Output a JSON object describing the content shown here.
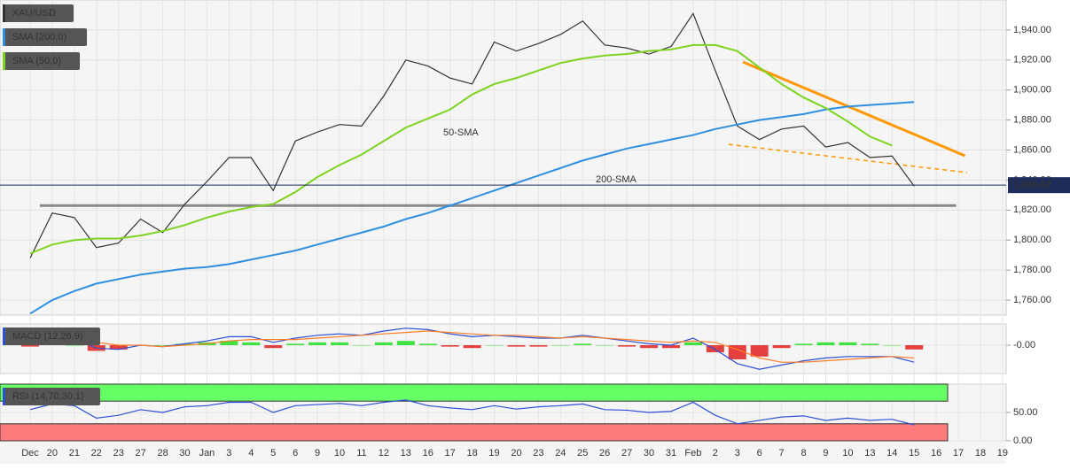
{
  "chart_data": [
    {
      "type": "line",
      "categories": [
        "Dec",
        "20",
        "21",
        "22",
        "23",
        "27",
        "28",
        "30",
        "Jan",
        "3",
        "4",
        "5",
        "6",
        "9",
        "10",
        "11",
        "12",
        "13",
        "16",
        "17",
        "18",
        "19",
        "20",
        "23",
        "24",
        "25",
        "26",
        "27",
        "30",
        "31",
        "Feb",
        "2",
        "3",
        "6",
        "7",
        "8",
        "9",
        "10",
        "13",
        "14",
        "15",
        "16",
        "17",
        "18",
        "19"
      ],
      "series": [
        {
          "name": "XAU/USD",
          "color": "#333333",
          "values": [
            1788,
            1818,
            1815,
            1795,
            1798,
            1814,
            1805,
            1824,
            1839,
            1855,
            1855,
            1833,
            1866,
            1872,
            1877,
            1876,
            1896,
            1920,
            1916,
            1908,
            1904,
            1932,
            1926,
            1931,
            1937,
            1946,
            1930,
            1928,
            1924,
            1929,
            1951,
            1913,
            1876,
            1867,
            1874,
            1876,
            1862,
            1865,
            1855,
            1856,
            1836,
            null,
            null,
            null,
            null
          ]
        },
        {
          "name": "SMA (200,0)",
          "color": "#2e8fe0",
          "values": [
            1751,
            1760,
            1766,
            1771,
            1774,
            1777,
            1779,
            1781,
            1782,
            1784,
            1787,
            1790,
            1793,
            1797,
            1801,
            1805,
            1809,
            1814,
            1818,
            1823,
            1828,
            1833,
            1838,
            1843,
            1848,
            1853,
            1857,
            1861,
            1864,
            1867,
            1870,
            1874,
            1877,
            1880,
            1882,
            1884,
            1887,
            1889,
            1890,
            1891,
            1892,
            null,
            null,
            null,
            null
          ]
        },
        {
          "name": "SMA (50,0)",
          "color": "#7ed321",
          "values": [
            1791,
            1797,
            1800,
            1801,
            1801,
            1803,
            1806,
            1810,
            1815,
            1819,
            1822,
            1824,
            1832,
            1842,
            1850,
            1857,
            1866,
            1875,
            1881,
            1887,
            1897,
            1904,
            1908,
            1913,
            1918,
            1921,
            1923,
            1924,
            1926,
            1927,
            1930,
            1930,
            1926,
            1915,
            1904,
            1895,
            1888,
            1879,
            1869,
            1863,
            null,
            null,
            null,
            null,
            null
          ]
        }
      ],
      "ylim": [
        1750,
        1960
      ],
      "yticks": [
        {
          "value": 1760,
          "label": "1,760.00"
        },
        {
          "value": 1780,
          "label": "1,780.00"
        },
        {
          "value": 1800,
          "label": "1,800.00"
        },
        {
          "value": 1820,
          "label": "1,820.00"
        },
        {
          "value": 1840,
          "label": "1,840.00"
        },
        {
          "value": 1860,
          "label": "1,860.00"
        },
        {
          "value": 1880,
          "label": "1,880.00"
        },
        {
          "value": 1900,
          "label": "1,900.00"
        },
        {
          "value": 1920,
          "label": "1,920.00"
        },
        {
          "value": 1940,
          "label": "1,940.00"
        }
      ],
      "grid": true,
      "last_price": {
        "value": 1836.62,
        "label": "1,836.62"
      },
      "lines": [
        {
          "from": [
            0.44,
            1823
          ],
          "to": [
            41.9,
            1823
          ],
          "color": "#888888",
          "dashed": false
        },
        {
          "from": [
            32.25,
            1918.7
          ],
          "to": [
            42.3,
            1856.2
          ],
          "color": "#ff9800",
          "dashed": false
        },
        {
          "from": [
            31.6,
            1863.8
          ],
          "to": [
            42.4,
            1845
          ],
          "color": "#ff9800",
          "dashed": true
        }
      ],
      "annotations": [
        {
          "text": "50-SMA",
          "color": "#7ed321"
        },
        {
          "text": "200-SMA",
          "color": "#2e8fe0"
        }
      ]
    },
    {
      "type": "macd",
      "title": "MACD (12,26,9)",
      "ylim": [
        -20,
        15
      ],
      "yticks": [
        {
          "value": 0,
          "label": "-0.00"
        }
      ],
      "series": [
        {
          "color": "#2d4fd6",
          "values": [
            2,
            5,
            4,
            -2,
            -3,
            0,
            -1,
            1,
            3,
            6,
            6,
            2,
            5,
            7,
            8,
            7,
            10,
            12,
            11,
            8,
            6,
            7,
            6,
            5,
            5,
            7,
            5,
            3,
            1,
            0,
            5,
            -3,
            -13,
            -17,
            -14,
            -11,
            -9,
            -8,
            -8,
            -8,
            -12,
            null,
            null,
            null,
            null
          ]
        },
        {
          "color": "#ff7f27",
          "values": [
            3,
            4,
            4,
            2,
            0,
            0,
            -1,
            0,
            1,
            3,
            4,
            4,
            4,
            5,
            6,
            7,
            8,
            9,
            10,
            9,
            8,
            7,
            7,
            6,
            5,
            6,
            5,
            4,
            3,
            2,
            3,
            2,
            -3,
            -9,
            -12,
            -12,
            -11,
            -10,
            -9,
            -8,
            -9,
            null,
            null,
            null,
            null
          ]
        }
      ],
      "histogram": {
        "up_color": "#22dd22",
        "down_color": "#e02020",
        "values": [
          -1,
          1,
          0,
          -4,
          -3,
          0,
          0,
          1,
          2,
          3,
          2,
          -2,
          1,
          2,
          2,
          0,
          2,
          3,
          1,
          -1,
          -2,
          0,
          -1,
          -1,
          0,
          1,
          0,
          -1,
          -2,
          -2,
          2,
          -5,
          -10,
          -8,
          -2,
          1,
          2,
          2,
          1,
          0,
          -3,
          null,
          null,
          null,
          null
        ]
      }
    },
    {
      "type": "rsi",
      "title": "RSI (14,70,30,1)",
      "ylim": [
        0,
        100
      ],
      "yticks": [
        {
          "value": 50,
          "label": "50.00"
        },
        {
          "value": 0,
          "label": "0.00"
        }
      ],
      "overbought": 70,
      "oversold": 30,
      "series": [
        {
          "color": "#2d4fd6",
          "values": [
            55,
            65,
            62,
            40,
            45,
            55,
            50,
            60,
            62,
            68,
            68,
            50,
            62,
            64,
            66,
            62,
            68,
            72,
            62,
            58,
            55,
            62,
            56,
            60,
            62,
            65,
            55,
            54,
            50,
            52,
            68,
            45,
            30,
            36,
            42,
            44,
            36,
            40,
            36,
            38,
            28,
            null,
            null,
            null,
            null
          ]
        }
      ]
    }
  ]
}
